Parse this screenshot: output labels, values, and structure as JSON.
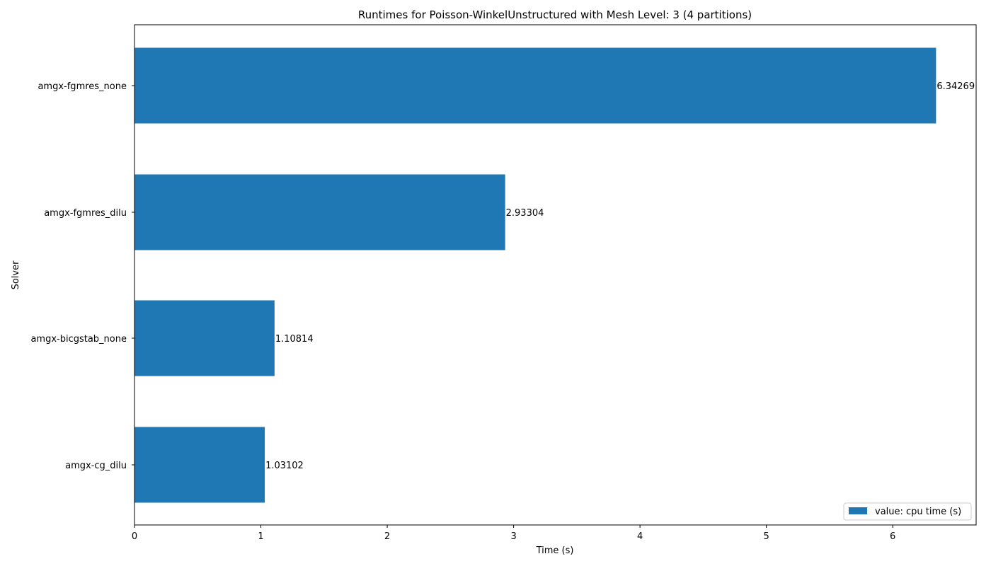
{
  "chart_data": {
    "type": "bar",
    "orientation": "horizontal",
    "title": "Runtimes for Poisson-WinkelUnstructured with Mesh Level: 3 (4 partitions)",
    "xlabel": "Time (s)",
    "ylabel": "Solver",
    "categories": [
      "amgx-fgmres_none",
      "amgx-fgmres_dilu",
      "amgx-bicgstab_none",
      "amgx-cg_dilu"
    ],
    "series": [
      {
        "name": "value: cpu time (s)",
        "values": [
          6.34269,
          2.93304,
          1.10814,
          1.03102
        ],
        "labels": [
          "6.34269",
          "2.93304",
          "1.10814",
          "1.03102"
        ],
        "color": "#1f77b4"
      }
    ],
    "xlim": [
      0,
      6.66
    ],
    "xticks": [
      0,
      1,
      2,
      3,
      4,
      5,
      6
    ],
    "grid": false,
    "legend_position": "lower-right"
  }
}
